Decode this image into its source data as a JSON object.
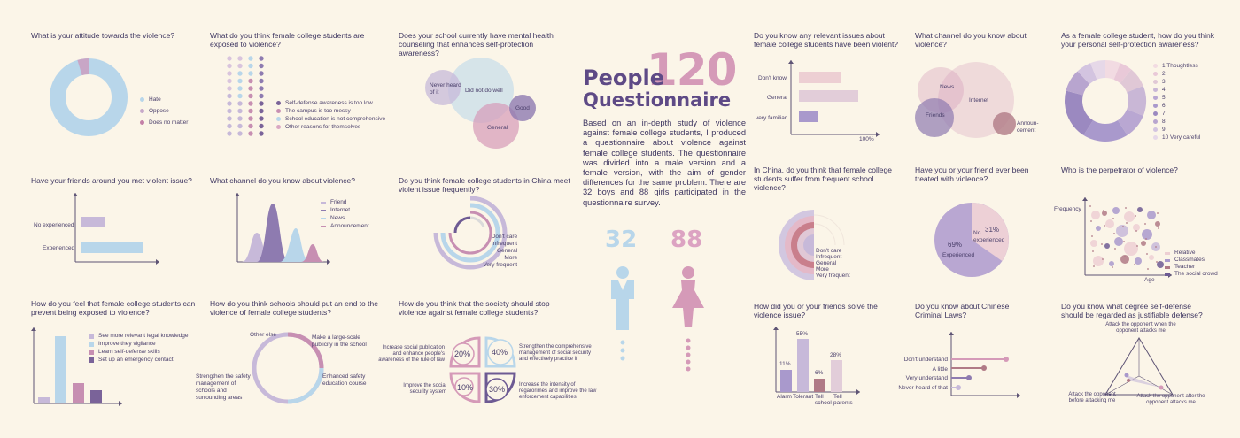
{
  "header": {
    "people_label": "People",
    "count": "120",
    "questionnaire_label": "Questionnaire",
    "intro": "Based on an in-depth study of violence against female college students, I produced a questionnaire about violence against female college students. The questionnaire was divided into a male version and a female version, with the aim of gender differences for the same problem. There are 32 boys and 88 girls participated in the questionnaire survey.",
    "boys": "32",
    "girls": "88"
  },
  "colors": {
    "bg": "#fbf5e8",
    "blue": "#b8d6ea",
    "purple": "#8e7bb0",
    "pink": "#d59ab8",
    "lavender": "#c7b9d9",
    "dark": "#6d5a93",
    "rose": "#b07a86"
  },
  "q1": {
    "question": "What is your attitude towards the violence?",
    "legend": [
      "Hate",
      "Oppose",
      "Does no matter"
    ]
  },
  "q2": {
    "question": "What do you think female college students are exposed to violence?",
    "legend": [
      "Self-defense awareness is too low",
      "The campus is too messy",
      "School education is not comprehensive",
      "Other reasons for themselves"
    ]
  },
  "q3": {
    "question": "Does your school currently have mental health counseling that enhances self-protection awareness?",
    "labels": [
      "Never heard of it",
      "Did not do well",
      "Good",
      "General"
    ]
  },
  "q4": {
    "question": "Have your friends around you met violent issue?",
    "labels": [
      "No experienced",
      "Experienced"
    ]
  },
  "q5": {
    "question": "What channel do you know about violence?",
    "legend": [
      "Friend",
      "Internet",
      "News",
      "Announcement"
    ]
  },
  "q6": {
    "question": "Do you think female college students in China meet violent issue frequently?",
    "labels": [
      "Don't care",
      "Infrequent",
      "General",
      "More",
      "Very frequent"
    ]
  },
  "q7": {
    "question": "How do you feel that female college students can prevent being exposed to violence?",
    "legend": [
      "See more relevant legal knowledge",
      "Improve they vigilance",
      "Learn self-defense skills",
      "Set up an emergency contact"
    ]
  },
  "q8": {
    "question": "How do you think schools should put an end to the violence of female college students?",
    "labels": [
      "Other else",
      "Make a large-scale publicity in the school",
      "Enhanced safety education course",
      "Strengthen the safety management of schools and surrounding areas"
    ]
  },
  "q9": {
    "question": "How do you think that the society should stop violence against female college students?",
    "items": [
      {
        "pct": "20%",
        "text": "Increase social publication and enhance people's awareness of the rule of law"
      },
      {
        "pct": "40%",
        "text": "Strengthen the comprehensive management of social security and effectively practice it"
      },
      {
        "pct": "10%",
        "text": "Improve the social security system"
      },
      {
        "pct": "30%",
        "text": "Increase the intensity of regarorimes and improve the law enforcement capabilities"
      }
    ]
  },
  "q10": {
    "question": "Do you know any relevant issues about female college students have been violent?",
    "labels": [
      "Don't know",
      "General",
      "very familiar"
    ],
    "axis": "100%"
  },
  "q11": {
    "question": "What channel do you know about violence?",
    "labels": [
      "News",
      "Internet",
      "Friends",
      "Announ-cement"
    ]
  },
  "q12": {
    "question": "As a female college student, how do you think your personal self-protection awareness?",
    "legend": [
      "1  Thoughtless",
      "2",
      "3",
      "4",
      "5",
      "6",
      "7",
      "8",
      "9",
      "10  Very careful"
    ]
  },
  "q13": {
    "question": "In China, do you think that female college students suffer from frequent school violence?",
    "labels": [
      "Don't care",
      "Infrequent",
      "General",
      "More",
      "Very frequent"
    ]
  },
  "q14": {
    "question": "Have you or your friend ever been treated with violence?",
    "labels": [
      "No experienced",
      "31%",
      "69%",
      "Experienced"
    ]
  },
  "q15": {
    "question": "Who is the perpetrator of violence?",
    "axis_y": "Frequency",
    "axis_x": "Age",
    "legend": [
      "Relative",
      "Classmates",
      "Teacher",
      "The social crowd"
    ]
  },
  "q16": {
    "question": "How did you or your friends solve the violence issue?",
    "bars": [
      {
        "label": "Alarm",
        "pct": "11%"
      },
      {
        "label": "Tolerant",
        "pct": "55%"
      },
      {
        "label": "Tell school",
        "pct": "6%"
      },
      {
        "label": "Tell parents",
        "pct": "28%"
      }
    ]
  },
  "q17": {
    "question": "Do you know about Chinese Criminal Laws?",
    "labels": [
      "Don't understand",
      "A little",
      "Very understand",
      "Never heard of that"
    ]
  },
  "q18": {
    "question": "Do you know what degree self-defense should be regarded as justifiable defense?",
    "labels": [
      "Attack the opponent when the opponent attacks me",
      "Attack the opponent before attacking me",
      "Attack the opponent after the opponent attacks me"
    ]
  },
  "chart_data": [
    {
      "id": "q4",
      "type": "bar",
      "categories": [
        "No experienced",
        "Experienced"
      ],
      "values": [
        20,
        53
      ]
    },
    {
      "id": "q7",
      "type": "bar",
      "categories": [
        "See more relevant legal knowledge",
        "Improve they vigilance",
        "Learn self-defense skills",
        "Set up an emergency contact"
      ],
      "values": [
        7,
        100,
        27,
        17
      ]
    },
    {
      "id": "q10",
      "type": "bar",
      "categories": [
        "Don't know",
        "General",
        "very familiar"
      ],
      "values": [
        38,
        53,
        17
      ],
      "xlabel": "100%"
    },
    {
      "id": "q14",
      "type": "pie",
      "categories": [
        "No experienced",
        "Experienced"
      ],
      "values": [
        31,
        69
      ]
    },
    {
      "id": "q16",
      "type": "bar",
      "categories": [
        "Alarm",
        "Tolerant",
        "Tell school",
        "Tell parents"
      ],
      "values": [
        11,
        55,
        6,
        28
      ]
    },
    {
      "id": "q17",
      "type": "bar",
      "categories": [
        "Don't understand",
        "A little",
        "Very understand",
        "Never heard of that"
      ],
      "values": [
        100,
        66,
        44,
        28
      ]
    },
    {
      "id": "q9",
      "type": "pie",
      "categories": [
        "Increase social publication",
        "Strengthen management",
        "Improve system",
        "Increase intensity"
      ],
      "values": [
        20,
        40,
        10,
        30
      ]
    }
  ]
}
